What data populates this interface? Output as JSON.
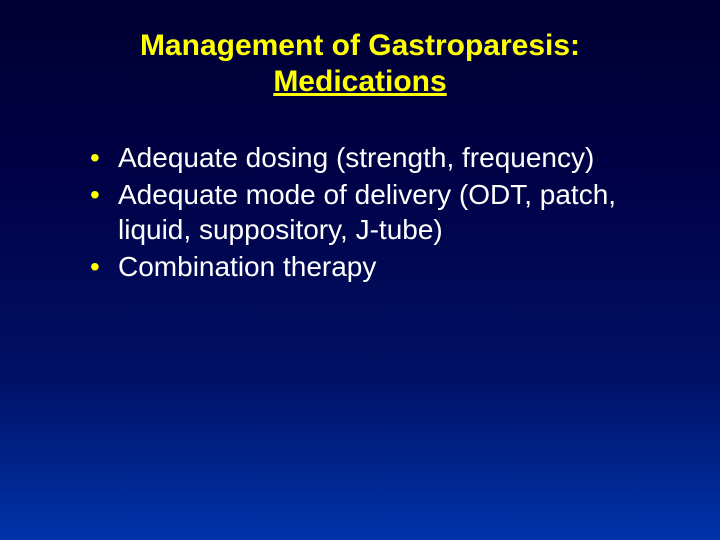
{
  "slide": {
    "title_line1": "Management of Gastroparesis:",
    "title_line2": "Medications",
    "title_color": "#ffff00",
    "title_fontsize": 30,
    "title_fontweight": "bold",
    "bullets": [
      "Adequate dosing (strength, frequency)",
      "Adequate mode of delivery (ODT, patch, liquid, suppository, J-tube)",
      "Combination therapy"
    ],
    "bullet_color": "#ffffff",
    "bullet_marker_color": "#ffff00",
    "bullet_fontsize": 28,
    "background_gradient": {
      "top": "#000033",
      "mid1": "#000044",
      "mid2": "#001166",
      "bottom": "#0033aa"
    },
    "font_family": "Arial"
  }
}
